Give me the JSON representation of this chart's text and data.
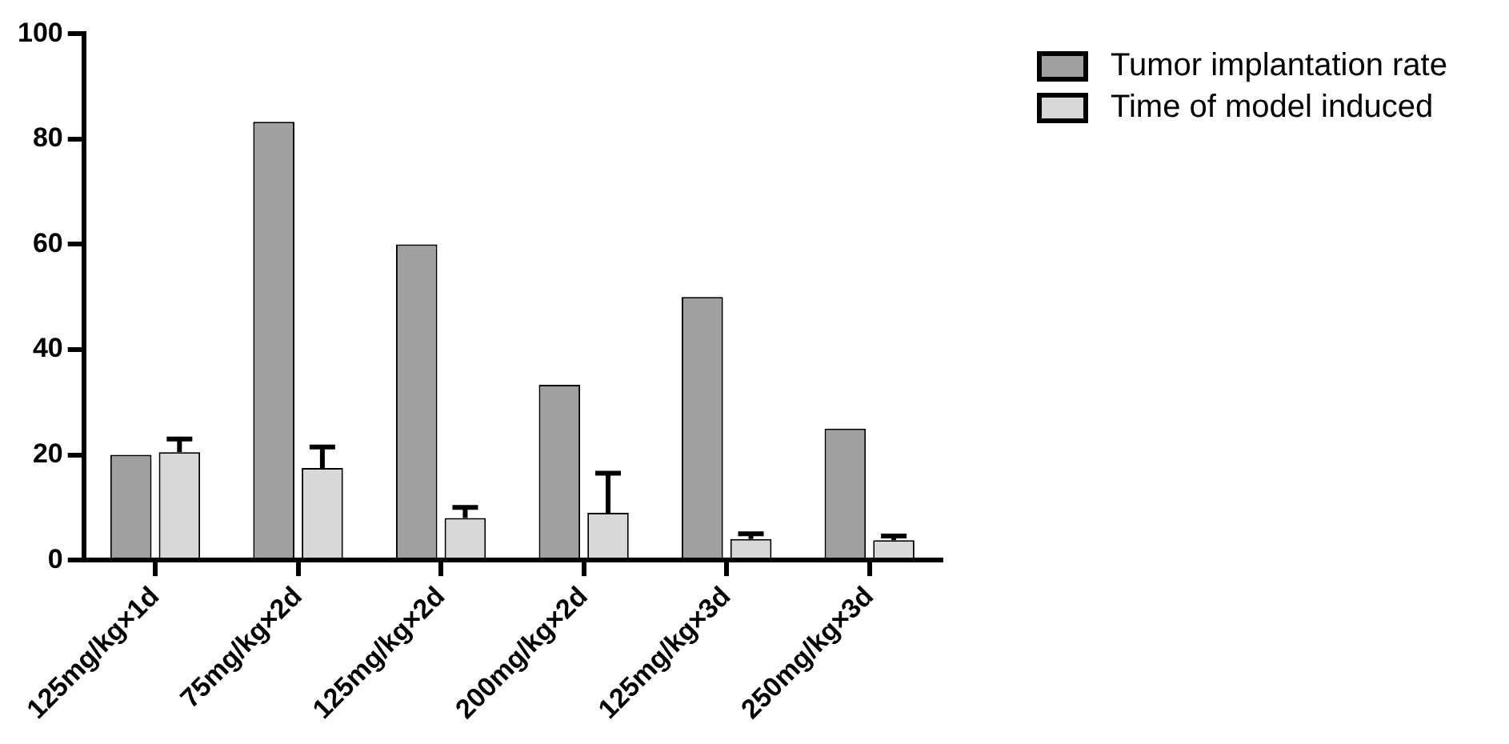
{
  "chart_data": {
    "type": "bar",
    "categories": [
      "125mg/kg×1d",
      "75mg/kg×2d",
      "125mg/kg×2d",
      "200mg/kg×2d",
      "125mg/kg×3d",
      "250mg/kg×3d"
    ],
    "series": [
      {
        "name": "Tumor implantation rate",
        "color": "#a0a0a0",
        "values": [
          20,
          83.3,
          60,
          33.3,
          50,
          25
        ]
      },
      {
        "name": "Time of model induced",
        "color": "#d8d8d8",
        "values": [
          20.5,
          17.5,
          8,
          9,
          4,
          3.8
        ],
        "errors": [
          2.5,
          4,
          2,
          7.5,
          1,
          0.8
        ]
      }
    ],
    "ylim": [
      0,
      100
    ],
    "yticks": [
      0,
      20,
      40,
      60,
      80,
      100
    ],
    "grid": false,
    "legend": "top right"
  }
}
